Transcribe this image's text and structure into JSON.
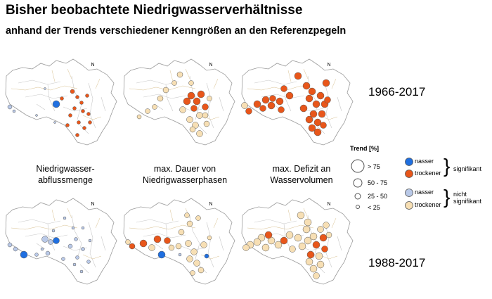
{
  "header": {
    "title": "Bisher beobachtete Niedrigwasserverhältnisse",
    "subtitle": "anhand der Trends verschiedener Kenngrößen an den Referenzpegeln"
  },
  "periods": [
    "1966-2017",
    "1988-2017"
  ],
  "indicators": [
    "Niedrigwasser-\nabflussmenge",
    "max. Dauer von\nNiedrigwasserphasen",
    "max. Defizit an\nWasservolumen"
  ],
  "north_arrow": "N",
  "legend": {
    "title": "Trend [%]",
    "sizes": [
      "> 75",
      "50 - 75",
      "25 - 50",
      "< 25"
    ],
    "categories": [
      {
        "label": "nasser",
        "color": "#1f6fe0"
      },
      {
        "label": "trockener",
        "color": "#e8561a"
      },
      {
        "label": "nasser",
        "color": "#b9c9e8"
      },
      {
        "label": "trockener",
        "color": "#f7dfb4"
      }
    ],
    "groups": [
      "signifikant",
      "nicht signifikant"
    ]
  },
  "colors": {
    "wet_significant": "#1f6fe0",
    "dry_significant": "#e8561a",
    "wet_not_significant": "#b9c9e8",
    "dry_not_significant": "#f7dfb4",
    "outline": "#9a9a9a",
    "river": "#c8c8c8"
  }
}
